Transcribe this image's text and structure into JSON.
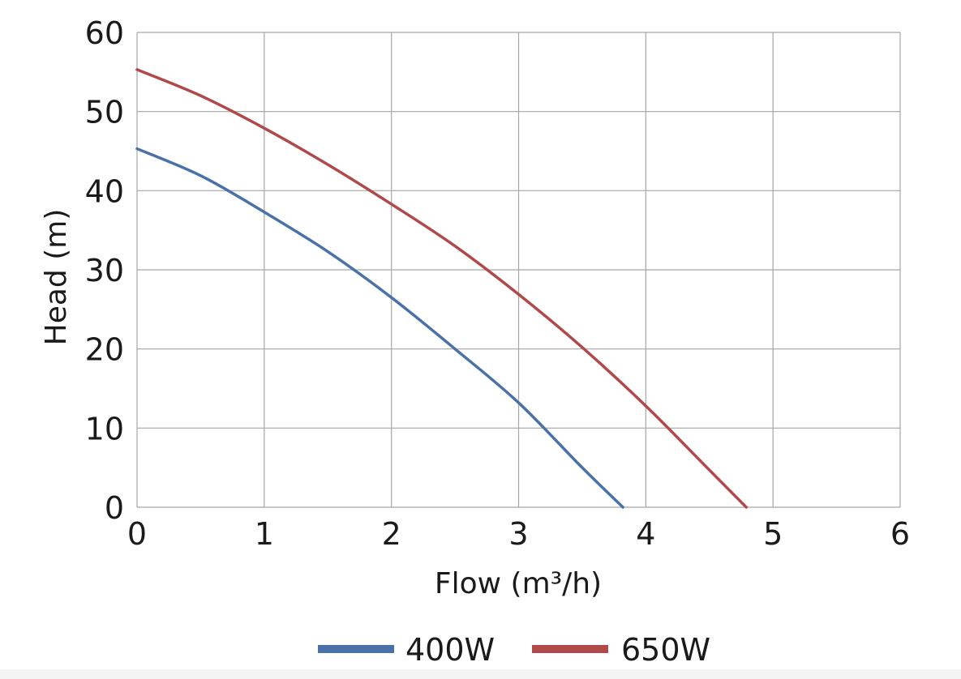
{
  "chart_data": {
    "type": "line",
    "title": "",
    "xlabel": "Flow (m³/h)",
    "ylabel": "Head (m)",
    "xlim": [
      0,
      6
    ],
    "ylim": [
      0,
      60
    ],
    "x_ticks": [
      "0",
      "1",
      "2",
      "3",
      "4",
      "5",
      "6"
    ],
    "y_ticks": [
      "0",
      "10",
      "20",
      "30",
      "40",
      "50",
      "60"
    ],
    "grid": true,
    "legend_position": "bottom",
    "series": [
      {
        "name": "400W",
        "color": "#4a72a8",
        "x": [
          0,
          0.5,
          1,
          1.5,
          2,
          2.5,
          3,
          3.5,
          3.82
        ],
        "y": [
          45.3,
          41.9,
          37.3,
          32.3,
          26.5,
          20.0,
          13.2,
          5.0,
          0
        ]
      },
      {
        "name": "650W",
        "color": "#b04a4a",
        "x": [
          0,
          0.5,
          1,
          1.5,
          2,
          2.5,
          3,
          3.5,
          4,
          4.5,
          4.79
        ],
        "y": [
          55.3,
          52.0,
          47.9,
          43.3,
          38.3,
          33.0,
          26.9,
          20.2,
          12.8,
          4.7,
          0
        ]
      }
    ]
  }
}
